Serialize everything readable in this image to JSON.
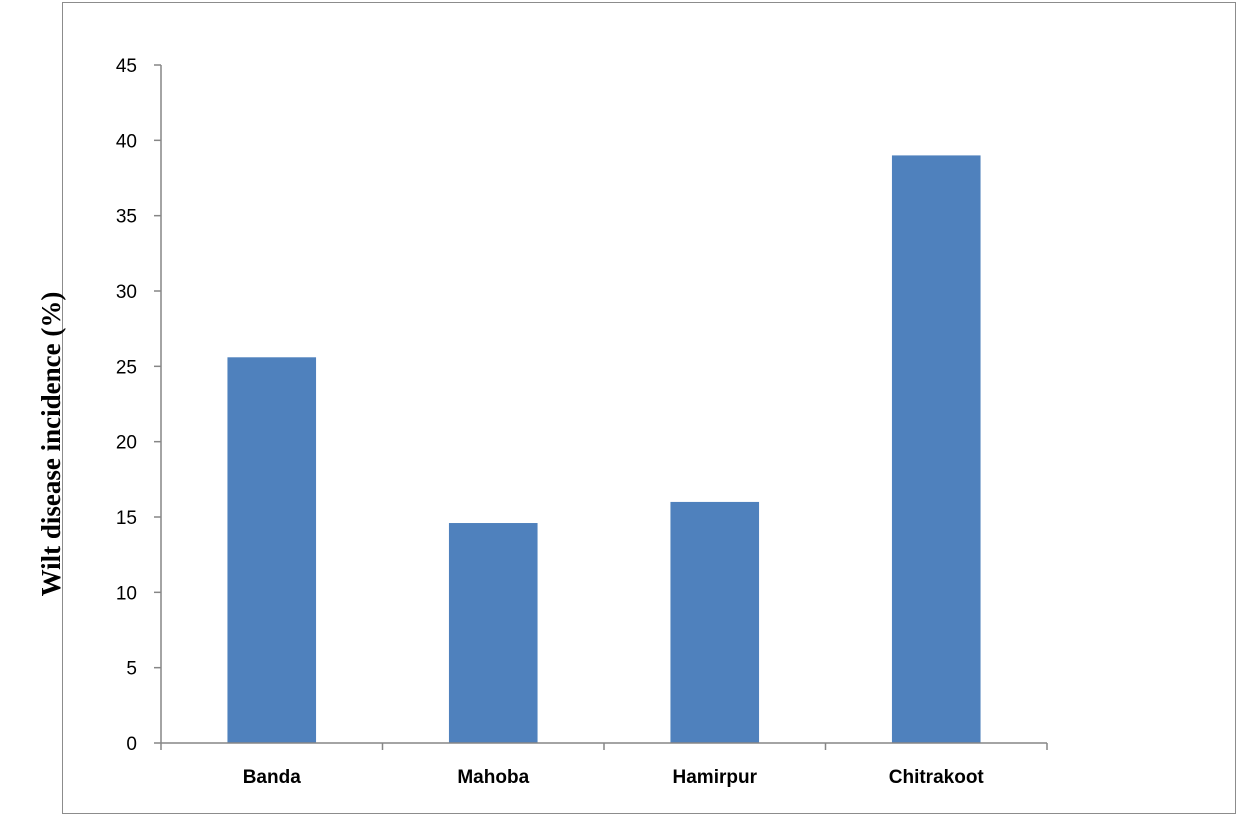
{
  "chart_data": {
    "type": "bar",
    "title": "",
    "xlabel": "",
    "ylabel": "Wilt disease incidence (%)",
    "categories": [
      "Banda",
      "Mahoba",
      "Hamirpur",
      "Chitrakoot"
    ],
    "values": [
      25.6,
      14.6,
      16.0,
      39.0
    ],
    "ylim": [
      0,
      45
    ],
    "yticks": [
      "0",
      "5",
      "10",
      "15",
      "20",
      "25",
      "30",
      "35",
      "40",
      "45"
    ],
    "grid": false,
    "legend": "none",
    "colors": {
      "bar": "#4F81BD",
      "axis": "#868686"
    }
  }
}
